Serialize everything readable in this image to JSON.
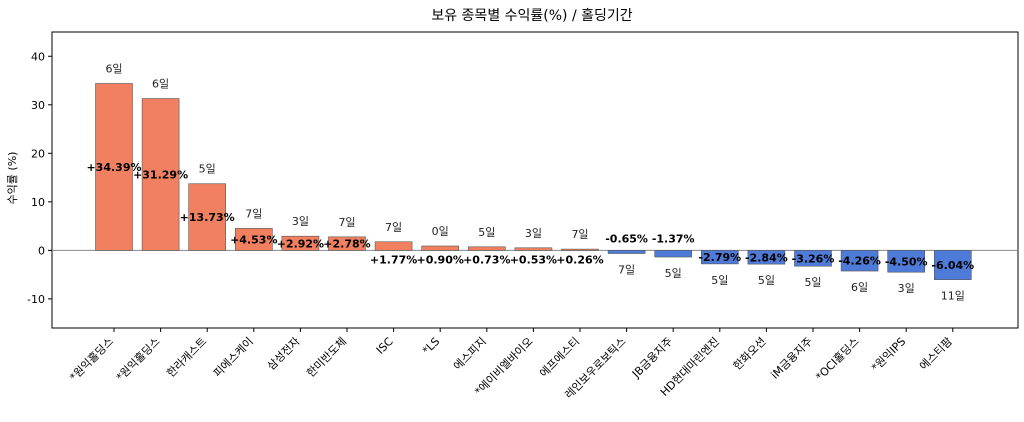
{
  "chart_data": {
    "type": "bar",
    "title": "보유 종목별 수익률(%) / 홀딩기간",
    "ylabel": "수익률 (%)",
    "xlabel": "",
    "ylim": [
      -16,
      45
    ],
    "yticks": [
      -10,
      0,
      10,
      20,
      30,
      40
    ],
    "grid": false,
    "categories": [
      "*원익홀딩스",
      "*원익홀딩스",
      "한라캐스트",
      "피에스케이",
      "삼성전자",
      "한미반도체",
      "ISC",
      "*LS",
      "에스피지",
      "*에이비엘바이오",
      "에프에스티",
      "레인보우로보틱스",
      "JB금융지주",
      "HD현대마린엔진",
      "한화오션",
      "iM금융지주",
      "*OCI홀딩스",
      "*원익IPS",
      "에스티팜"
    ],
    "values": [
      34.39,
      31.29,
      13.73,
      4.53,
      2.92,
      2.78,
      1.77,
      0.9,
      0.73,
      0.53,
      0.26,
      -0.65,
      -1.37,
      -2.79,
      -2.84,
      -3.26,
      -4.26,
      -4.5,
      -6.04
    ],
    "value_labels": [
      "+34.39%",
      "+31.29%",
      "+13.73%",
      "+4.53%",
      "+2.92%",
      "+2.78%",
      "+1.77%",
      "+0.90%",
      "+0.73%",
      "+0.53%",
      "+0.26%",
      "-0.65%",
      "-1.37%",
      "-2.79%",
      "-2.84%",
      "-3.26%",
      "-4.26%",
      "-4.50%",
      "-6.04%"
    ],
    "holding_days": [
      "6일",
      "6일",
      "5일",
      "7일",
      "3일",
      "7일",
      "7일",
      "0일",
      "5일",
      "3일",
      "7일",
      "7일",
      "5일",
      "5일",
      "5일",
      "5일",
      "6일",
      "3일",
      "11일"
    ],
    "colors": {
      "positive": "#f08060",
      "negative": "#4f7bd8",
      "zero_line": "#888888"
    }
  }
}
